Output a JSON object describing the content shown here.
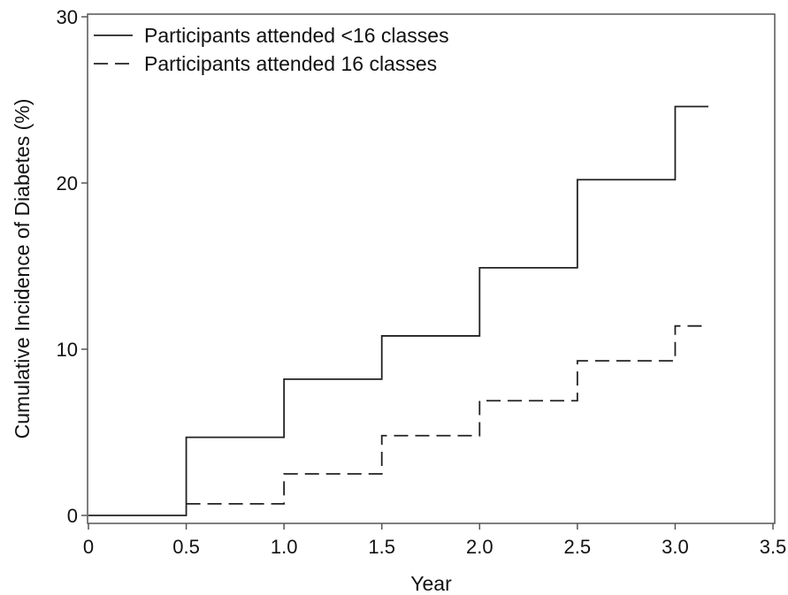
{
  "chart_data": {
    "type": "line",
    "step": true,
    "xlabel": "Year",
    "ylabel": "Cumulative Incidence of Diabetes (%)",
    "xlim": [
      0,
      3.5
    ],
    "ylim": [
      0,
      30
    ],
    "x_ticks": [
      "0",
      "0.5",
      "1.0",
      "1.5",
      "2.0",
      "2.5",
      "3.0",
      "3.5"
    ],
    "y_ticks": [
      "0",
      "10",
      "20",
      "30"
    ],
    "grid": false,
    "legend_position": "top-left",
    "series": [
      {
        "name": "Participants attended <16 classes",
        "style": "solid",
        "x": [
          0,
          0.5,
          1.0,
          1.5,
          2.0,
          2.5,
          3.0,
          3.17
        ],
        "y": [
          0,
          4.7,
          8.2,
          10.8,
          14.9,
          20.2,
          24.6,
          24.6
        ]
      },
      {
        "name": "Participants attended 16 classes",
        "style": "dashed",
        "x": [
          0.5,
          1.0,
          1.5,
          2.0,
          2.5,
          3.0,
          3.17
        ],
        "y": [
          0.7,
          2.5,
          4.8,
          6.9,
          9.3,
          11.4,
          11.4
        ]
      }
    ]
  }
}
